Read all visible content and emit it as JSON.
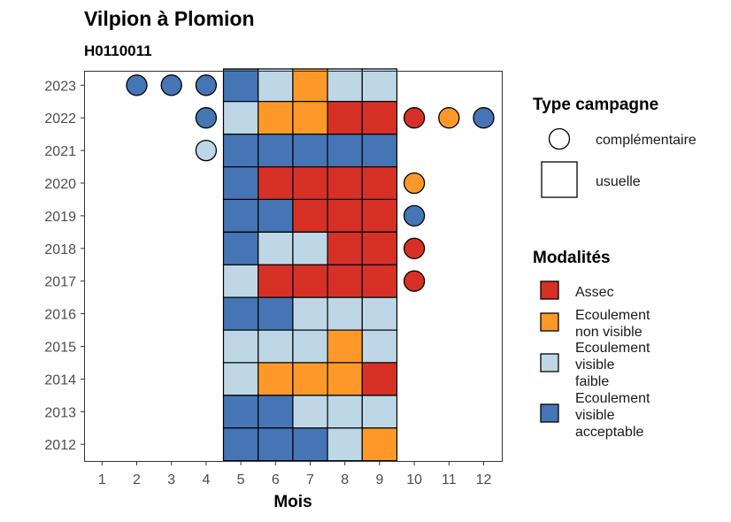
{
  "colors": {
    "Assec": "#d73027",
    "Ecoulement non visible": "#fe9929",
    "Ecoulement visible faible": "#bdd7e7",
    "Ecoulement visible acceptable": "#4575b4"
  },
  "chart_data": {
    "type": "heatmap",
    "title": "Vilpion à Plomion",
    "subtitle": "H0110011",
    "xlabel": "Mois",
    "ylabel": "",
    "x_ticks": [
      "1",
      "2",
      "3",
      "4",
      "5",
      "6",
      "7",
      "8",
      "9",
      "10",
      "11",
      "12"
    ],
    "y_ticks": [
      "2012",
      "2013",
      "2014",
      "2015",
      "2016",
      "2017",
      "2018",
      "2019",
      "2020",
      "2021",
      "2022",
      "2023"
    ],
    "grid": false,
    "legend_position": "right",
    "legends": [
      {
        "title": "Type campagne",
        "entries": [
          {
            "label": "complémentaire",
            "shape": "circle"
          },
          {
            "label": "usuelle",
            "shape": "square"
          }
        ]
      },
      {
        "title": "Modalités",
        "entries": [
          {
            "label": "Assec",
            "lines": [
              "Assec"
            ],
            "color_key": "Assec"
          },
          {
            "label": "Ecoulement non visible",
            "lines": [
              "Ecoulement",
              "non visible"
            ],
            "color_key": "Ecoulement non visible"
          },
          {
            "label": "Ecoulement visible faible",
            "lines": [
              "Ecoulement",
              "visible",
              "faible"
            ],
            "color_key": "Ecoulement visible faible"
          },
          {
            "label": "Ecoulement visible acceptable",
            "lines": [
              "Ecoulement",
              "visible",
              "acceptable"
            ],
            "color_key": "Ecoulement visible acceptable"
          }
        ]
      }
    ],
    "points": [
      {
        "year": 2023,
        "month": 2,
        "type": "complémentaire",
        "modalite": "Ecoulement visible acceptable"
      },
      {
        "year": 2023,
        "month": 3,
        "type": "complémentaire",
        "modalite": "Ecoulement visible acceptable"
      },
      {
        "year": 2023,
        "month": 4,
        "type": "complémentaire",
        "modalite": "Ecoulement visible acceptable"
      },
      {
        "year": 2023,
        "month": 5,
        "type": "usuelle",
        "modalite": "Ecoulement visible acceptable"
      },
      {
        "year": 2023,
        "month": 6,
        "type": "usuelle",
        "modalite": "Ecoulement visible faible"
      },
      {
        "year": 2023,
        "month": 7,
        "type": "usuelle",
        "modalite": "Ecoulement non visible"
      },
      {
        "year": 2023,
        "month": 8,
        "type": "usuelle",
        "modalite": "Ecoulement visible faible"
      },
      {
        "year": 2023,
        "month": 9,
        "type": "usuelle",
        "modalite": "Ecoulement visible faible"
      },
      {
        "year": 2022,
        "month": 4,
        "type": "complémentaire",
        "modalite": "Ecoulement visible acceptable"
      },
      {
        "year": 2022,
        "month": 5,
        "type": "usuelle",
        "modalite": "Ecoulement visible faible"
      },
      {
        "year": 2022,
        "month": 6,
        "type": "usuelle",
        "modalite": "Ecoulement non visible"
      },
      {
        "year": 2022,
        "month": 7,
        "type": "usuelle",
        "modalite": "Ecoulement non visible"
      },
      {
        "year": 2022,
        "month": 8,
        "type": "usuelle",
        "modalite": "Assec"
      },
      {
        "year": 2022,
        "month": 9,
        "type": "usuelle",
        "modalite": "Assec"
      },
      {
        "year": 2022,
        "month": 10,
        "type": "complémentaire",
        "modalite": "Assec"
      },
      {
        "year": 2022,
        "month": 11,
        "type": "complémentaire",
        "modalite": "Ecoulement non visible"
      },
      {
        "year": 2022,
        "month": 12,
        "type": "complémentaire",
        "modalite": "Ecoulement visible acceptable"
      },
      {
        "year": 2021,
        "month": 4,
        "type": "complémentaire",
        "modalite": "Ecoulement visible faible"
      },
      {
        "year": 2021,
        "month": 5,
        "type": "usuelle",
        "modalite": "Ecoulement visible acceptable"
      },
      {
        "year": 2021,
        "month": 6,
        "type": "usuelle",
        "modalite": "Ecoulement visible acceptable"
      },
      {
        "year": 2021,
        "month": 7,
        "type": "usuelle",
        "modalite": "Ecoulement visible acceptable"
      },
      {
        "year": 2021,
        "month": 8,
        "type": "usuelle",
        "modalite": "Ecoulement visible acceptable"
      },
      {
        "year": 2021,
        "month": 9,
        "type": "usuelle",
        "modalite": "Ecoulement visible acceptable"
      },
      {
        "year": 2020,
        "month": 5,
        "type": "usuelle",
        "modalite": "Ecoulement visible acceptable"
      },
      {
        "year": 2020,
        "month": 6,
        "type": "usuelle",
        "modalite": "Assec"
      },
      {
        "year": 2020,
        "month": 7,
        "type": "usuelle",
        "modalite": "Assec"
      },
      {
        "year": 2020,
        "month": 8,
        "type": "usuelle",
        "modalite": "Assec"
      },
      {
        "year": 2020,
        "month": 9,
        "type": "usuelle",
        "modalite": "Assec"
      },
      {
        "year": 2020,
        "month": 10,
        "type": "complémentaire",
        "modalite": "Ecoulement non visible"
      },
      {
        "year": 2019,
        "month": 5,
        "type": "usuelle",
        "modalite": "Ecoulement visible acceptable"
      },
      {
        "year": 2019,
        "month": 6,
        "type": "usuelle",
        "modalite": "Ecoulement visible acceptable"
      },
      {
        "year": 2019,
        "month": 7,
        "type": "usuelle",
        "modalite": "Assec"
      },
      {
        "year": 2019,
        "month": 8,
        "type": "usuelle",
        "modalite": "Assec"
      },
      {
        "year": 2019,
        "month": 9,
        "type": "usuelle",
        "modalite": "Assec"
      },
      {
        "year": 2019,
        "month": 10,
        "type": "complémentaire",
        "modalite": "Ecoulement visible acceptable"
      },
      {
        "year": 2018,
        "month": 5,
        "type": "usuelle",
        "modalite": "Ecoulement visible acceptable"
      },
      {
        "year": 2018,
        "month": 6,
        "type": "usuelle",
        "modalite": "Ecoulement visible faible"
      },
      {
        "year": 2018,
        "month": 7,
        "type": "usuelle",
        "modalite": "Ecoulement visible faible"
      },
      {
        "year": 2018,
        "month": 8,
        "type": "usuelle",
        "modalite": "Assec"
      },
      {
        "year": 2018,
        "month": 9,
        "type": "usuelle",
        "modalite": "Assec"
      },
      {
        "year": 2018,
        "month": 10,
        "type": "complémentaire",
        "modalite": "Assec"
      },
      {
        "year": 2017,
        "month": 5,
        "type": "usuelle",
        "modalite": "Ecoulement visible faible"
      },
      {
        "year": 2017,
        "month": 6,
        "type": "usuelle",
        "modalite": "Assec"
      },
      {
        "year": 2017,
        "month": 7,
        "type": "usuelle",
        "modalite": "Assec"
      },
      {
        "year": 2017,
        "month": 8,
        "type": "usuelle",
        "modalite": "Assec"
      },
      {
        "year": 2017,
        "month": 9,
        "type": "usuelle",
        "modalite": "Assec"
      },
      {
        "year": 2017,
        "month": 10,
        "type": "complémentaire",
        "modalite": "Assec"
      },
      {
        "year": 2016,
        "month": 5,
        "type": "usuelle",
        "modalite": "Ecoulement visible acceptable"
      },
      {
        "year": 2016,
        "month": 6,
        "type": "usuelle",
        "modalite": "Ecoulement visible acceptable"
      },
      {
        "year": 2016,
        "month": 7,
        "type": "usuelle",
        "modalite": "Ecoulement visible faible"
      },
      {
        "year": 2016,
        "month": 8,
        "type": "usuelle",
        "modalite": "Ecoulement visible faible"
      },
      {
        "year": 2016,
        "month": 9,
        "type": "usuelle",
        "modalite": "Ecoulement visible faible"
      },
      {
        "year": 2015,
        "month": 5,
        "type": "usuelle",
        "modalite": "Ecoulement visible faible"
      },
      {
        "year": 2015,
        "month": 6,
        "type": "usuelle",
        "modalite": "Ecoulement visible faible"
      },
      {
        "year": 2015,
        "month": 7,
        "type": "usuelle",
        "modalite": "Ecoulement visible faible"
      },
      {
        "year": 2015,
        "month": 8,
        "type": "usuelle",
        "modalite": "Ecoulement non visible"
      },
      {
        "year": 2015,
        "month": 9,
        "type": "usuelle",
        "modalite": "Ecoulement visible faible"
      },
      {
        "year": 2014,
        "month": 5,
        "type": "usuelle",
        "modalite": "Ecoulement visible faible"
      },
      {
        "year": 2014,
        "month": 6,
        "type": "usuelle",
        "modalite": "Ecoulement non visible"
      },
      {
        "year": 2014,
        "month": 7,
        "type": "usuelle",
        "modalite": "Ecoulement non visible"
      },
      {
        "year": 2014,
        "month": 8,
        "type": "usuelle",
        "modalite": "Ecoulement non visible"
      },
      {
        "year": 2014,
        "month": 9,
        "type": "usuelle",
        "modalite": "Assec"
      },
      {
        "year": 2013,
        "month": 5,
        "type": "usuelle",
        "modalite": "Ecoulement visible acceptable"
      },
      {
        "year": 2013,
        "month": 6,
        "type": "usuelle",
        "modalite": "Ecoulement visible acceptable"
      },
      {
        "year": 2013,
        "month": 7,
        "type": "usuelle",
        "modalite": "Ecoulement visible faible"
      },
      {
        "year": 2013,
        "month": 8,
        "type": "usuelle",
        "modalite": "Ecoulement visible faible"
      },
      {
        "year": 2013,
        "month": 9,
        "type": "usuelle",
        "modalite": "Ecoulement visible faible"
      },
      {
        "year": 2012,
        "month": 5,
        "type": "usuelle",
        "modalite": "Ecoulement visible acceptable"
      },
      {
        "year": 2012,
        "month": 6,
        "type": "usuelle",
        "modalite": "Ecoulement visible acceptable"
      },
      {
        "year": 2012,
        "month": 7,
        "type": "usuelle",
        "modalite": "Ecoulement visible acceptable"
      },
      {
        "year": 2012,
        "month": 8,
        "type": "usuelle",
        "modalite": "Ecoulement visible faible"
      },
      {
        "year": 2012,
        "month": 9,
        "type": "usuelle",
        "modalite": "Ecoulement non visible"
      }
    ]
  }
}
